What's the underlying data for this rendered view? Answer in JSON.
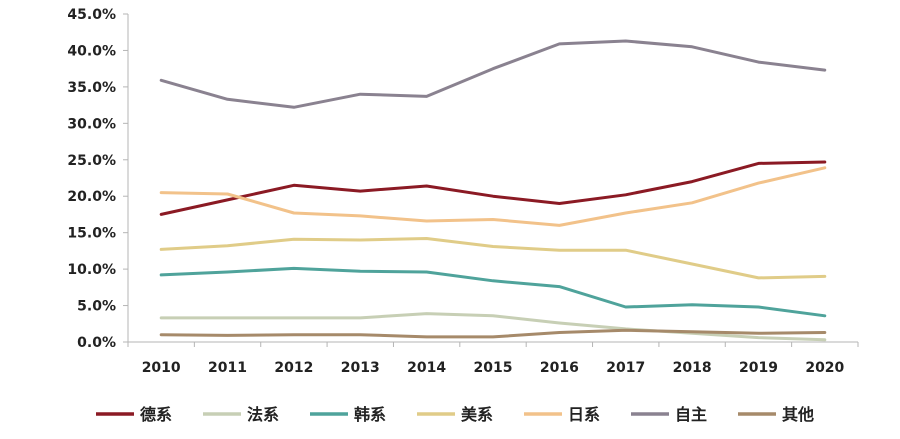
{
  "chart_data": {
    "type": "line",
    "title": "",
    "xlabel": "",
    "ylabel": "",
    "x": [
      "2010",
      "2011",
      "2012",
      "2013",
      "2014",
      "2015",
      "2016",
      "2017",
      "2018",
      "2019",
      "2020"
    ],
    "y_ticks": [
      "0.0%",
      "5.0%",
      "10.0%",
      "15.0%",
      "20.0%",
      "25.0%",
      "30.0%",
      "35.0%",
      "40.0%",
      "45.0%"
    ],
    "ylim": [
      0,
      45
    ],
    "grid": false,
    "legend_position": "bottom",
    "series": [
      {
        "name": "德系",
        "color": "#8b1a24",
        "values": [
          17.5,
          19.5,
          21.5,
          20.7,
          21.4,
          20.0,
          19.0,
          20.2,
          22.0,
          24.5,
          24.7
        ]
      },
      {
        "name": "法系",
        "color": "#c7cfb5",
        "values": [
          3.3,
          3.3,
          3.3,
          3.3,
          3.9,
          3.6,
          2.6,
          1.8,
          1.2,
          0.6,
          0.3
        ]
      },
      {
        "name": "韩系",
        "color": "#4fa39b",
        "values": [
          9.2,
          9.6,
          10.1,
          9.7,
          9.6,
          8.4,
          7.6,
          4.8,
          5.1,
          4.8,
          3.6
        ]
      },
      {
        "name": "美系",
        "color": "#e0cc88",
        "values": [
          12.7,
          13.2,
          14.1,
          14.0,
          14.2,
          13.1,
          12.6,
          12.6,
          10.7,
          8.8,
          9.0
        ]
      },
      {
        "name": "日系",
        "color": "#f2c28a",
        "values": [
          20.5,
          20.3,
          17.7,
          17.3,
          16.6,
          16.8,
          16.0,
          17.7,
          19.1,
          21.8,
          23.9
        ]
      },
      {
        "name": "自主",
        "color": "#8a8290",
        "values": [
          35.9,
          33.3,
          32.2,
          34.0,
          33.7,
          37.5,
          40.9,
          41.3,
          40.5,
          38.4,
          37.3
        ]
      },
      {
        "name": "其他",
        "color": "#a68a6a",
        "values": [
          1.0,
          0.9,
          1.0,
          1.0,
          0.7,
          0.7,
          1.3,
          1.6,
          1.4,
          1.2,
          1.3
        ]
      }
    ]
  }
}
